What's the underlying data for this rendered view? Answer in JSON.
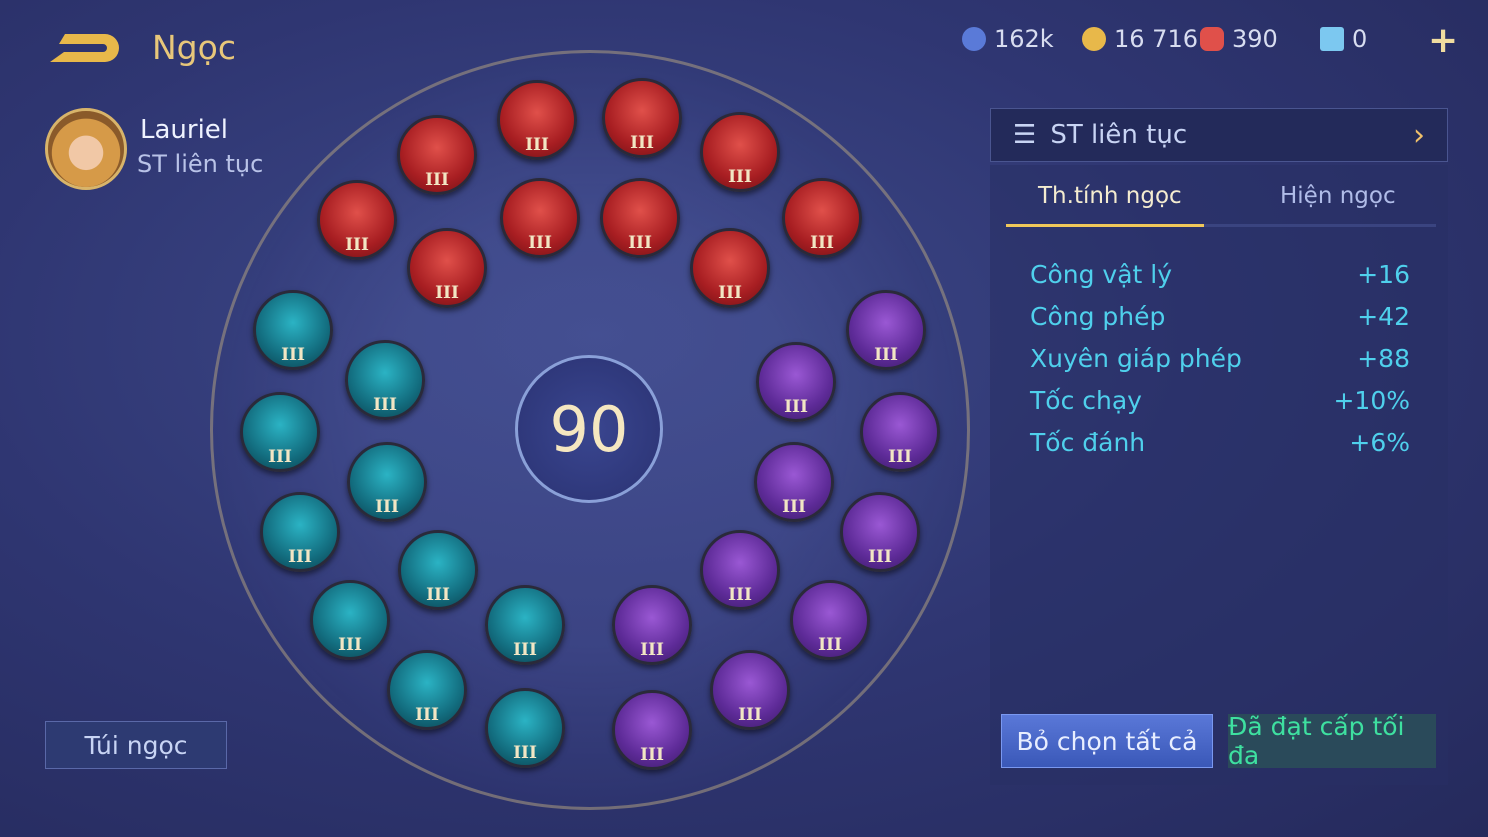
{
  "header": {
    "title": "Ngọc",
    "back_icon": "back-arrow-icon",
    "resources": [
      {
        "icon": "blue-coin-icon",
        "value": "162k",
        "color": "#5a7ad8"
      },
      {
        "icon": "gold-coin-icon",
        "value": "16 716",
        "color": "#e8b84a"
      },
      {
        "icon": "red-gem-icon",
        "value": "390",
        "color": "#e0504a"
      },
      {
        "icon": "blue-card-icon",
        "value": "0",
        "color": "#7cc8f0"
      }
    ],
    "add_icon": "plus-icon"
  },
  "hero": {
    "name": "Lauriel",
    "build": "ST liên tục"
  },
  "bag_label": "Túi ngọc",
  "level": "90",
  "gems": [
    {
      "type": "red",
      "tier": "III"
    },
    {
      "type": "red",
      "tier": "III"
    },
    {
      "type": "red",
      "tier": "III"
    },
    {
      "type": "red",
      "tier": "III"
    },
    {
      "type": "red",
      "tier": "III"
    },
    {
      "type": "red",
      "tier": "III"
    },
    {
      "type": "red",
      "tier": "III"
    },
    {
      "type": "red",
      "tier": "III"
    },
    {
      "type": "red",
      "tier": "III"
    },
    {
      "type": "red",
      "tier": "III"
    },
    {
      "type": "teal",
      "tier": "III"
    },
    {
      "type": "teal",
      "tier": "III"
    },
    {
      "type": "teal",
      "tier": "III"
    },
    {
      "type": "teal",
      "tier": "III"
    },
    {
      "type": "teal",
      "tier": "III"
    },
    {
      "type": "teal",
      "tier": "III"
    },
    {
      "type": "teal",
      "tier": "III"
    },
    {
      "type": "teal",
      "tier": "III"
    },
    {
      "type": "teal",
      "tier": "III"
    },
    {
      "type": "teal",
      "tier": "III"
    },
    {
      "type": "purple",
      "tier": "III"
    },
    {
      "type": "purple",
      "tier": "III"
    },
    {
      "type": "purple",
      "tier": "III"
    },
    {
      "type": "purple",
      "tier": "III"
    },
    {
      "type": "purple",
      "tier": "III"
    },
    {
      "type": "purple",
      "tier": "III"
    },
    {
      "type": "purple",
      "tier": "III"
    },
    {
      "type": "purple",
      "tier": "III"
    },
    {
      "type": "purple",
      "tier": "III"
    },
    {
      "type": "purple",
      "tier": "III"
    }
  ],
  "panel": {
    "selector": "ST liên tục",
    "tabs": [
      "Th.tính ngọc",
      "Hiện ngọc"
    ],
    "active_tab": 0,
    "stats": [
      {
        "name": "Công vật lý",
        "value": "+16"
      },
      {
        "name": "Công phép",
        "value": "+42"
      },
      {
        "name": "Xuyên giáp phép",
        "value": "+88"
      },
      {
        "name": "Tốc chạy",
        "value": "+10%"
      },
      {
        "name": "Tốc đánh",
        "value": "+6%"
      }
    ],
    "deselect_all": "Bỏ chọn tất cả",
    "max_level": "Đã đạt cấp tối đa"
  }
}
